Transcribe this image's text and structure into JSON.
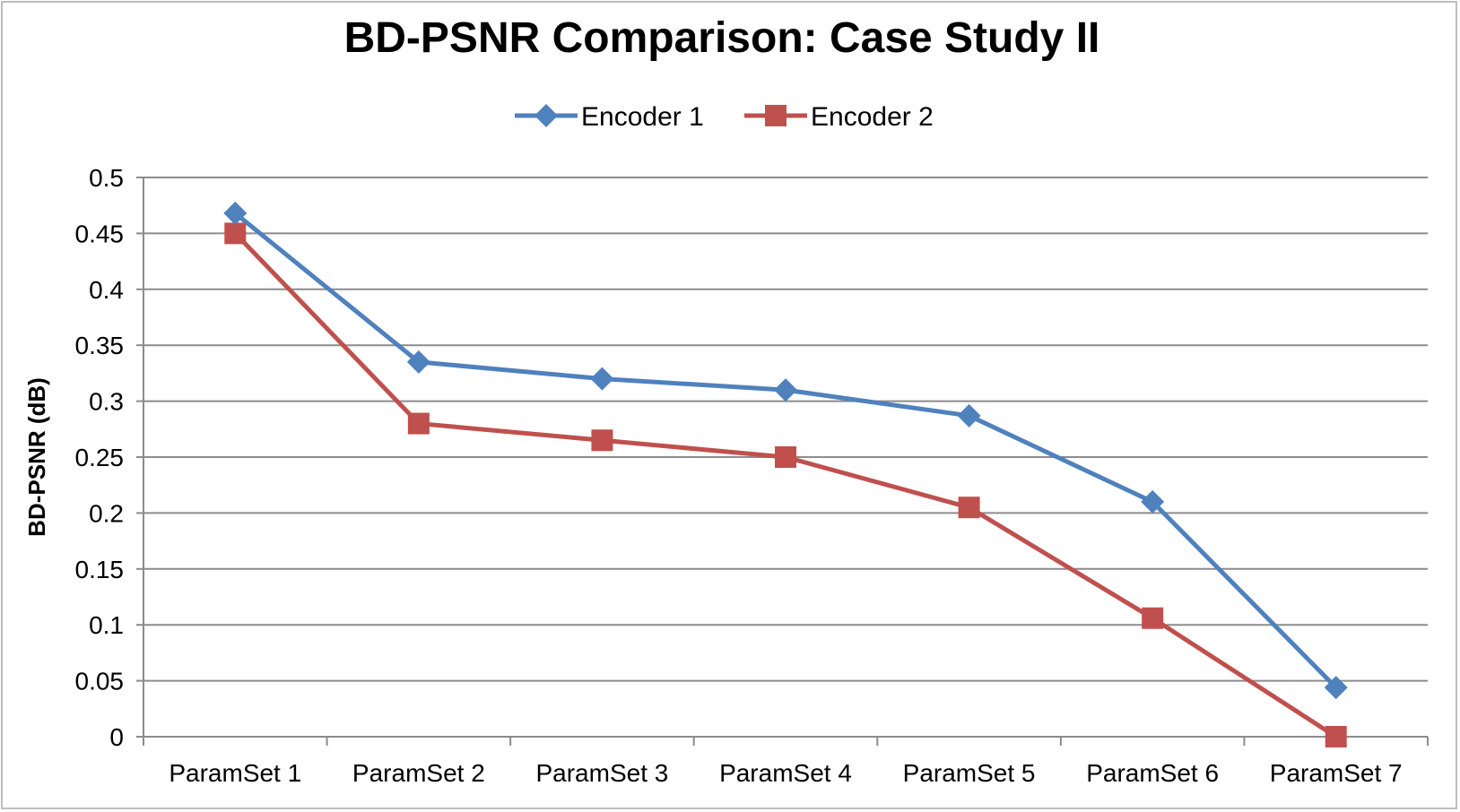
{
  "chart_data": {
    "type": "line",
    "title": "BD-PSNR Comparison: Case Study II",
    "xlabel": "",
    "ylabel": "BD-PSNR (dB)",
    "categories": [
      "ParamSet 1",
      "ParamSet 2",
      "ParamSet 3",
      "ParamSet 4",
      "ParamSet 5",
      "ParamSet 6",
      "ParamSet 7"
    ],
    "ylim": [
      0,
      0.5
    ],
    "yticks": [
      "0",
      "0.05",
      "0.1",
      "0.15",
      "0.2",
      "0.25",
      "0.3",
      "0.35",
      "0.4",
      "0.45",
      "0.5"
    ],
    "grid": true,
    "legend_position": "top",
    "series": [
      {
        "name": "Encoder 1",
        "color": "#4f81bd",
        "marker": "diamond",
        "values": [
          0.468,
          0.335,
          0.32,
          0.31,
          0.287,
          0.21,
          0.044
        ]
      },
      {
        "name": "Encoder 2",
        "color": "#c0504d",
        "marker": "square",
        "values": [
          0.45,
          0.28,
          0.265,
          0.25,
          0.205,
          0.106,
          0.0
        ]
      }
    ]
  }
}
